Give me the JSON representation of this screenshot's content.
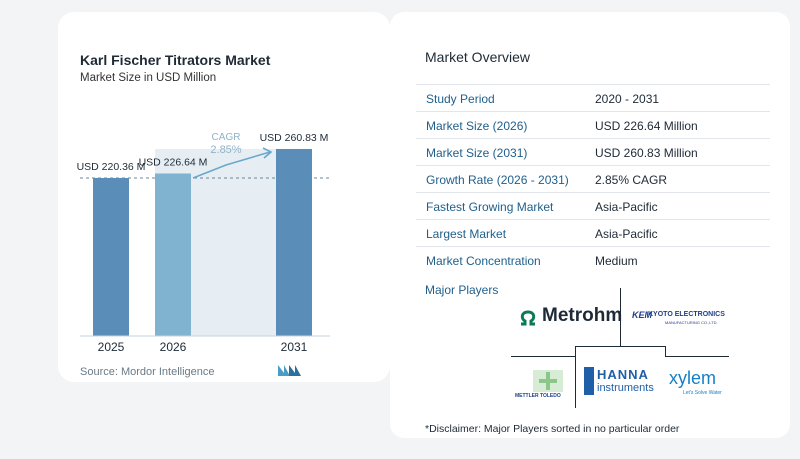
{
  "chart_data": {
    "type": "bar",
    "title": "Karl Fischer Titrators Market",
    "subtitle": "Market Size in USD Million",
    "categories": [
      "2025",
      "2026",
      "2031"
    ],
    "values": [
      220.36,
      226.64,
      260.83
    ],
    "value_labels": [
      "USD 220.36 M",
      "USD 226.64 M",
      "USD 260.83 M"
    ],
    "cagr_label": "CAGR",
    "cagr_value": "2.85%",
    "colors": {
      "bar": "#5a8db8",
      "bar_light": "#7fb3d0",
      "region": "#dbe7f0",
      "arrow": "#6aa8c9",
      "cagr": "#8fb4c8"
    }
  },
  "source": "Source: Mordor Intelligence",
  "overview": {
    "title": "Market Overview",
    "rows": [
      {
        "key": "Study Period",
        "value": "2020 - 2031"
      },
      {
        "key": "Market Size (2026)",
        "value": "USD 226.64 Million"
      },
      {
        "key": "Market Size (2031)",
        "value": "USD 260.83 Million"
      },
      {
        "key": "Growth Rate (2026 - 2031)",
        "value": "2.85% CAGR"
      },
      {
        "key": "Fastest Growing Market",
        "value": "Asia-Pacific"
      },
      {
        "key": "Largest Market",
        "value": "Asia-Pacific"
      },
      {
        "key": "Market Concentration",
        "value": "Medium"
      }
    ]
  },
  "players": {
    "label": "Major Players",
    "metrohm": "Metrohm",
    "kyoto": "KYOTO ELECTRONICS",
    "kyoto_sub": "MANUFACTURING CO.,LTD.",
    "kem": "KEM",
    "mettler": "METTLER TOLEDO",
    "hanna": "HANNA",
    "hanna_sub": "instruments",
    "xylem": "xylem",
    "xylem_sub": "Let's Solve Water"
  },
  "disclaimer": "*Disclaimer: Major Players sorted in no particular order"
}
